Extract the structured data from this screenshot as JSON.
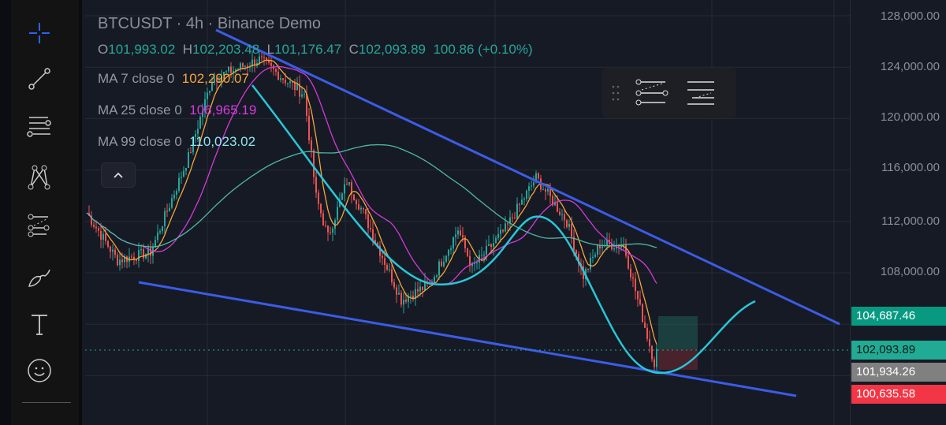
{
  "header": {
    "title": "BTCUSDT · 4h · Binance Demo",
    "ohlc": [
      {
        "k": "O",
        "v": "101,993.02"
      },
      {
        "k": "H",
        "v": "102,203.48"
      },
      {
        "k": "L",
        "v": "101,176.47"
      },
      {
        "k": "C",
        "v": "102,093.89"
      }
    ],
    "change": "100.86 (+0.10%)"
  },
  "indicators": [
    {
      "label": "MA 7 close 0",
      "value": "102,290.07",
      "color": "#f5a53b"
    },
    {
      "label": "MA 25 close 0",
      "value": "106,965.19",
      "color": "#d43bd8"
    },
    {
      "label": "MA 99 close 0",
      "value": "110,023.02",
      "color": "#8fe6f0"
    }
  ],
  "toolbar": {
    "tools": [
      "crosshair-icon",
      "trend-line-icon",
      "fib-retracement-icon",
      "pattern-icon",
      "prediction-icon",
      "brush-icon",
      "text-icon",
      "emoji-icon"
    ]
  },
  "price_scale": {
    "ticks": [
      "128,000.00",
      "124,000.00",
      "120,000.00",
      "116,000.00",
      "112,000.00",
      "108,000.00"
    ],
    "labels": [
      {
        "value": "104,687.46",
        "bg": "#089981",
        "fg": "#ffffff"
      },
      {
        "value": "102,093.89",
        "bg": "#22ab94",
        "fg": "#0c1a17"
      },
      {
        "value": "101,934.26",
        "bg": "#808080",
        "fg": "#ffffff"
      },
      {
        "value": "100,635.58",
        "bg": "#f23645",
        "fg": "#ffffff"
      }
    ]
  },
  "chart_data": {
    "type": "candlestick",
    "symbol": "BTCUSDT",
    "interval": "4h",
    "price_path": [
      [
        0,
        112660
      ],
      [
        13,
        108980
      ],
      [
        27,
        109600
      ],
      [
        43,
        117000
      ],
      [
        53,
        123100
      ],
      [
        73,
        124600
      ],
      [
        92,
        121860
      ],
      [
        97,
        113900
      ],
      [
        102,
        110800
      ],
      [
        110,
        115100
      ],
      [
        117,
        112660
      ],
      [
        133,
        105900
      ],
      [
        145,
        107100
      ],
      [
        157,
        111400
      ],
      [
        163,
        108370
      ],
      [
        177,
        111400
      ],
      [
        190,
        115400
      ],
      [
        203,
        112000
      ],
      [
        210,
        107750
      ],
      [
        217,
        110200
      ],
      [
        227,
        110200
      ],
      [
        233,
        105900
      ],
      [
        240,
        101000
      ],
      [
        241,
        102094
      ]
    ],
    "last_price": 102093.89,
    "colors": {
      "up": "#26a69a",
      "down": "#ef5350"
    }
  }
}
